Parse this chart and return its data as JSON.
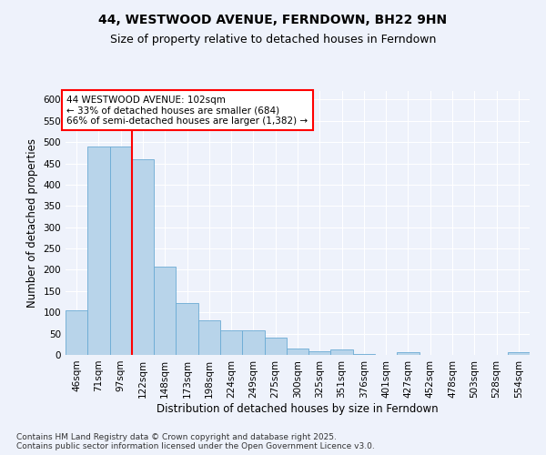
{
  "title_line1": "44, WESTWOOD AVENUE, FERNDOWN, BH22 9HN",
  "title_line2": "Size of property relative to detached houses in Ferndown",
  "xlabel": "Distribution of detached houses by size in Ferndown",
  "ylabel": "Number of detached properties",
  "footer": "Contains HM Land Registry data © Crown copyright and database right 2025.\nContains public sector information licensed under the Open Government Licence v3.0.",
  "bin_labels": [
    "46sqm",
    "71sqm",
    "97sqm",
    "122sqm",
    "148sqm",
    "173sqm",
    "198sqm",
    "224sqm",
    "249sqm",
    "275sqm",
    "300sqm",
    "325sqm",
    "351sqm",
    "376sqm",
    "401sqm",
    "427sqm",
    "452sqm",
    "478sqm",
    "503sqm",
    "528sqm",
    "554sqm"
  ],
  "bar_values": [
    105,
    490,
    490,
    460,
    207,
    122,
    82,
    57,
    57,
    40,
    15,
    9,
    12,
    3,
    0,
    6,
    0,
    0,
    0,
    0,
    6
  ],
  "bar_color": "#b8d4ea",
  "bar_edge_color": "#6aaad4",
  "vline_x": 2.5,
  "vline_color": "red",
  "annotation_text": "44 WESTWOOD AVENUE: 102sqm\n← 33% of detached houses are smaller (684)\n66% of semi-detached houses are larger (1,382) →",
  "annotation_box_color": "white",
  "annotation_box_edgecolor": "red",
  "ylim": [
    0,
    620
  ],
  "yticks": [
    0,
    50,
    100,
    150,
    200,
    250,
    300,
    350,
    400,
    450,
    500,
    550,
    600
  ],
  "background_color": "#eef2fb",
  "grid_color": "#ffffff",
  "title_fontsize": 10,
  "subtitle_fontsize": 9,
  "axis_label_fontsize": 8.5,
  "tick_fontsize": 7.5,
  "footer_fontsize": 6.5,
  "annotation_fontsize": 7.5
}
